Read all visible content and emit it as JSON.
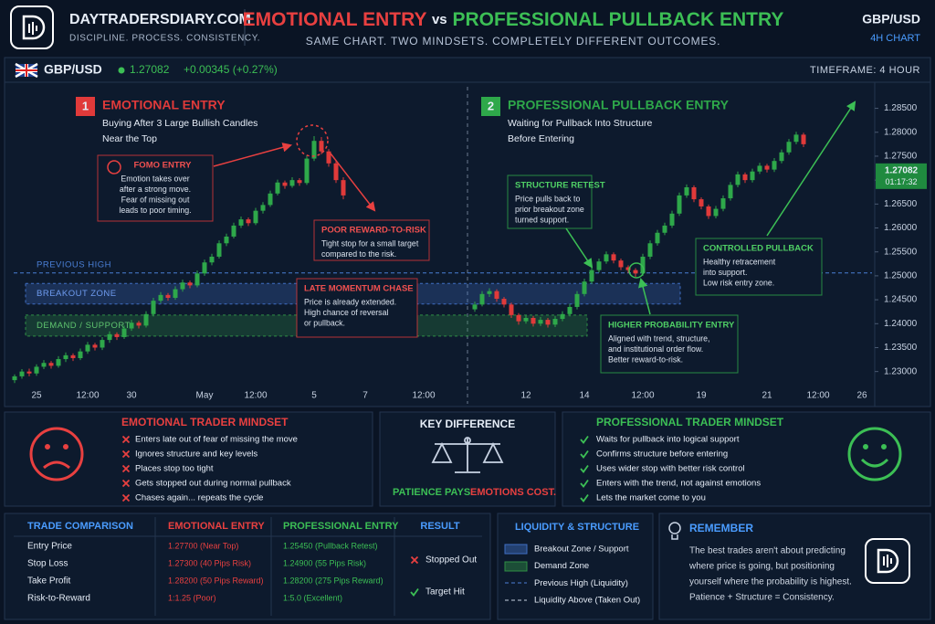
{
  "header": {
    "brand": "DAYTRADERSDIARY.COM",
    "tagline": "DISCIPLINE. PROCESS. CONSISTENCY.",
    "title_left": "EMOTIONAL ENTRY",
    "title_vs": "vs",
    "title_right": "PROFESSIONAL PULLBACK ENTRY",
    "subtitle": "SAME CHART. TWO MINDSETS. COMPLETELY DIFFERENT OUTCOMES.",
    "pair": "GBP/USD",
    "timeframe": "4H CHART"
  },
  "chart_data": {
    "type": "candlestick",
    "symbol": "GBP/USD",
    "price": 1.27082,
    "change": "+0.00345 (+0.27%)",
    "timeframe": "TIMEFRAME: 4 HOUR",
    "countdown": "01:17:32",
    "up_color": "#2ea84a",
    "down_color": "#e03a3a",
    "price_color": "#1f8a3f",
    "ylim": [
      1.2265,
      1.2895
    ],
    "yticks": [
      {
        "value": 1.23,
        "label": "1.23000"
      },
      {
        "value": 1.235,
        "label": "1.23500"
      },
      {
        "value": 1.24,
        "label": "1.24000"
      },
      {
        "value": 1.245,
        "label": "1.24500"
      },
      {
        "value": 1.25,
        "label": "1.25000"
      },
      {
        "value": 1.255,
        "label": "1.25500"
      },
      {
        "value": 1.26,
        "label": "1.26000"
      },
      {
        "value": 1.265,
        "label": "1.26500"
      },
      {
        "value": 1.27,
        "label": "1.27000"
      },
      {
        "value": 1.275,
        "label": "1.27500"
      },
      {
        "value": 1.28,
        "label": "1.28000"
      },
      {
        "value": 1.285,
        "label": "1.28500"
      }
    ],
    "categories": [
      null,
      null,
      null,
      "25",
      null,
      null,
      null,
      null,
      null,
      null,
      "12:00",
      null,
      null,
      null,
      null,
      null,
      "30",
      null,
      null,
      null,
      null,
      null,
      null,
      null,
      null,
      null,
      "May",
      null,
      null,
      null,
      null,
      null,
      null,
      "12:00",
      null,
      null,
      null,
      null,
      null,
      null,
      null,
      "5",
      null,
      null,
      null,
      null,
      null,
      null,
      "7",
      null,
      null,
      null,
      null,
      null,
      null,
      null,
      "12:00",
      null,
      null,
      null,
      null,
      null,
      null,
      null,
      null,
      null,
      null,
      null,
      null,
      null,
      "12",
      null,
      null,
      null,
      null,
      null,
      null,
      null,
      "14",
      null,
      null,
      null,
      null,
      null,
      null,
      null,
      "12:00",
      null,
      null,
      null,
      null,
      null,
      null,
      null,
      "19",
      null,
      null,
      null,
      null,
      null,
      null,
      null,
      null,
      "21",
      null,
      null,
      null,
      null,
      null,
      null,
      "12:00",
      null,
      null,
      null,
      null,
      null,
      "26"
    ],
    "candles": [
      [
        1.2282,
        1.2294,
        1.2276,
        1.229
      ],
      [
        1.229,
        1.2305,
        1.2285,
        1.23
      ],
      [
        1.23,
        1.2306,
        1.229,
        1.2296
      ],
      [
        1.2296,
        1.2315,
        1.2291,
        1.231
      ],
      [
        1.231,
        1.2324,
        1.2305,
        1.2318
      ],
      [
        1.2318,
        1.2322,
        1.2306,
        1.2312
      ],
      [
        1.2312,
        1.2332,
        1.2308,
        1.2326
      ],
      [
        1.2326,
        1.234,
        1.232,
        1.2334
      ],
      [
        1.2334,
        1.2338,
        1.2322,
        1.2328
      ],
      [
        1.2328,
        1.2348,
        1.2324,
        1.2342
      ],
      [
        1.2342,
        1.2362,
        1.2337,
        1.2356
      ],
      [
        1.2356,
        1.236,
        1.2344,
        1.235
      ],
      [
        1.235,
        1.2372,
        1.2345,
        1.2366
      ],
      [
        1.2366,
        1.2384,
        1.236,
        1.2378
      ],
      [
        1.2378,
        1.2382,
        1.2366,
        1.2372
      ],
      [
        1.2372,
        1.2396,
        1.2368,
        1.239
      ],
      [
        1.239,
        1.2408,
        1.2385,
        1.2402
      ],
      [
        1.2402,
        1.2406,
        1.239,
        1.2396
      ],
      [
        1.2396,
        1.2426,
        1.2392,
        1.242
      ],
      [
        1.242,
        1.2454,
        1.2415,
        1.2448
      ],
      [
        1.2448,
        1.2466,
        1.2443,
        1.246
      ],
      [
        1.246,
        1.2464,
        1.2448,
        1.2454
      ],
      [
        1.2454,
        1.2478,
        1.245,
        1.2472
      ],
      [
        1.2472,
        1.2492,
        1.2467,
        1.2486
      ],
      [
        1.2486,
        1.249,
        1.2474,
        1.248
      ],
      [
        1.248,
        1.2511,
        1.2476,
        1.2505
      ],
      [
        1.2505,
        1.2534,
        1.25,
        1.2528
      ],
      [
        1.2528,
        1.2546,
        1.2522,
        1.254
      ],
      [
        1.254,
        1.2574,
        1.2536,
        1.2568
      ],
      [
        1.2568,
        1.2588,
        1.2562,
        1.2582
      ],
      [
        1.2582,
        1.2611,
        1.2578,
        1.2605
      ],
      [
        1.2605,
        1.2624,
        1.26,
        1.2618
      ],
      [
        1.2618,
        1.2622,
        1.2604,
        1.261
      ],
      [
        1.261,
        1.2642,
        1.2606,
        1.2636
      ],
      [
        1.2636,
        1.2654,
        1.263,
        1.2648
      ],
      [
        1.2648,
        1.2678,
        1.2644,
        1.2672
      ],
      [
        1.2672,
        1.2701,
        1.2668,
        1.2695
      ],
      [
        1.2695,
        1.2699,
        1.2682,
        1.2688
      ],
      [
        1.2688,
        1.2706,
        1.2684,
        1.27
      ],
      [
        1.27,
        1.2704,
        1.2688,
        1.2694
      ],
      [
        1.2694,
        1.2752,
        1.269,
        1.2745
      ],
      [
        1.2745,
        1.2792,
        1.274,
        1.2782
      ],
      [
        1.2782,
        1.279,
        1.2754,
        1.276
      ],
      [
        1.276,
        1.2765,
        1.2728,
        1.2735
      ],
      [
        1.2735,
        1.274,
        1.2694,
        1.27
      ],
      [
        1.27,
        1.2706,
        1.266,
        1.2668
      ],
      null,
      null,
      null,
      null,
      null,
      null,
      null,
      null,
      null,
      null,
      null,
      null,
      null,
      null,
      null,
      null,
      null,
      [
        1.243,
        1.2446,
        1.2425,
        1.244
      ],
      [
        1.244,
        1.2468,
        1.2436,
        1.2462
      ],
      [
        1.2462,
        1.2474,
        1.2456,
        1.2468
      ],
      [
        1.2468,
        1.2472,
        1.2446,
        1.2452
      ],
      [
        1.2452,
        1.2456,
        1.2434,
        1.244
      ],
      [
        1.244,
        1.2444,
        1.2412,
        1.2418
      ],
      [
        1.2418,
        1.2422,
        1.2398,
        1.2405
      ],
      [
        1.2405,
        1.2418,
        1.24,
        1.2412
      ],
      [
        1.2412,
        1.2416,
        1.2394,
        1.24
      ],
      [
        1.24,
        1.2414,
        1.2395,
        1.2408
      ],
      [
        1.2408,
        1.2412,
        1.2392,
        1.2398
      ],
      [
        1.2398,
        1.2416,
        1.2393,
        1.241
      ],
      [
        1.241,
        1.2426,
        1.2405,
        1.242
      ],
      [
        1.242,
        1.2441,
        1.2415,
        1.2435
      ],
      [
        1.2435,
        1.2468,
        1.243,
        1.2462
      ],
      [
        1.2462,
        1.2494,
        1.2457,
        1.2488
      ],
      [
        1.2488,
        1.2518,
        1.2483,
        1.2512
      ],
      [
        1.2512,
        1.2536,
        1.2507,
        1.253
      ],
      [
        1.253,
        1.2551,
        1.2525,
        1.2545
      ],
      [
        1.2545,
        1.2549,
        1.2526,
        1.2532
      ],
      [
        1.2532,
        1.2536,
        1.2512,
        1.2518
      ],
      [
        1.2518,
        1.2522,
        1.2506,
        1.2512
      ],
      [
        1.2512,
        1.2516,
        1.2498,
        1.2505
      ],
      [
        1.2505,
        1.2546,
        1.25,
        1.254
      ],
      [
        1.254,
        1.2574,
        1.2535,
        1.2568
      ],
      [
        1.2568,
        1.2596,
        1.2563,
        1.259
      ],
      [
        1.259,
        1.2611,
        1.2585,
        1.2605
      ],
      [
        1.2605,
        1.2636,
        1.26,
        1.263
      ],
      [
        1.263,
        1.2674,
        1.2625,
        1.2668
      ],
      [
        1.2668,
        1.2691,
        1.2663,
        1.2685
      ],
      [
        1.2685,
        1.2689,
        1.2654,
        1.266
      ],
      [
        1.266,
        1.2664,
        1.2639,
        1.2645
      ],
      [
        1.2645,
        1.2649,
        1.2619,
        1.2625
      ],
      [
        1.2625,
        1.2646,
        1.262,
        1.264
      ],
      [
        1.264,
        1.2668,
        1.2635,
        1.2662
      ],
      [
        1.2662,
        1.2696,
        1.2657,
        1.269
      ],
      [
        1.269,
        1.2718,
        1.2685,
        1.2712
      ],
      [
        1.2712,
        1.2716,
        1.2694,
        1.27
      ],
      [
        1.27,
        1.2724,
        1.2695,
        1.2718
      ],
      [
        1.2718,
        1.2736,
        1.2713,
        1.273
      ],
      [
        1.273,
        1.2734,
        1.2716,
        1.2722
      ],
      [
        1.2722,
        1.2746,
        1.2717,
        1.274
      ],
      [
        1.274,
        1.2764,
        1.2735,
        1.2758
      ],
      [
        1.2758,
        1.2786,
        1.2753,
        1.278
      ],
      [
        1.278,
        1.2801,
        1.2775,
        1.2795
      ],
      [
        1.2795,
        1.2799,
        1.2769,
        1.2775
      ],
      null,
      null,
      null,
      null,
      null,
      null,
      null,
      null
    ],
    "levels": [
      {
        "label": "PREVIOUS HIGH",
        "value": 1.2506,
        "color": "#4a7fd6"
      }
    ],
    "zones": [
      {
        "label": "BREAKOUT ZONE",
        "low": 1.2441,
        "high": 1.2484,
        "color": "#3f6fc4"
      },
      {
        "label": "DEMAND / SUPPORT",
        "low": 1.2374,
        "high": 1.2418,
        "color": "#2f8f45"
      }
    ],
    "sections": [
      {
        "number": "1",
        "title": "EMOTIONAL ENTRY",
        "lines": [
          "Buying After 3 Large Bullish Candles",
          "Near the Top"
        ],
        "color": "#e03a3a"
      },
      {
        "number": "2",
        "title": "PROFESSIONAL PULLBACK ENTRY",
        "lines": [
          "Waiting for Pullback Into Structure",
          "Before Entering"
        ],
        "color": "#2ea84a"
      }
    ],
    "callouts": [
      {
        "title": "FOMO ENTRY",
        "lines": [
          "Emotion takes over",
          "after a strong move.",
          "Fear of missing out",
          "leads to poor timing."
        ],
        "color": "#e03a3a"
      },
      {
        "title": "POOR REWARD-TO-RISK",
        "lines": [
          "Tight stop for a small target",
          "compared to the risk."
        ],
        "color": "#e03a3a"
      },
      {
        "title": "LATE MOMENTUM CHASE",
        "lines": [
          "Price is already extended.",
          "High chance of reversal",
          "or pullback."
        ],
        "color": "#e03a3a"
      },
      {
        "title": "STRUCTURE RETEST",
        "lines": [
          "Price pulls back to",
          "prior breakout zone",
          "turned support."
        ],
        "color": "#2ea84a"
      },
      {
        "title": "CONTROLLED PULLBACK",
        "lines": [
          "Healthy retracement",
          "into support.",
          "Low risk entry zone."
        ],
        "color": "#2ea84a"
      },
      {
        "title": "HIGHER PROBABILITY ENTRY",
        "lines": [
          "Aligned with trend, structure,",
          "and institutional order flow.",
          "Better reward-to-risk."
        ],
        "color": "#2ea84a"
      }
    ]
  },
  "emotional_mindset": {
    "title": "EMOTIONAL TRADER MINDSET",
    "items": [
      "Enters late out of fear of missing the move",
      "Ignores structure and key levels",
      "Places stop too tight",
      "Gets stopped out during normal pullback",
      "Chases again... repeats the cycle"
    ]
  },
  "key_difference": {
    "title": "KEY DIFFERENCE",
    "left": "PATIENCE PAYS.",
    "right": "EMOTIONS COST."
  },
  "professional_mindset": {
    "title": "PROFESSIONAL TRADER MINDSET",
    "items": [
      "Waits for pullback into logical support",
      "Confirms structure before entering",
      "Uses wider stop with better risk control",
      "Enters with the trend, not against emotions",
      "Lets the market come to you"
    ]
  },
  "comparison": {
    "headers": [
      "TRADE COMPARISON",
      "EMOTIONAL ENTRY",
      "PROFESSIONAL ENTRY",
      "RESULT"
    ],
    "rows": [
      [
        "Entry Price",
        "1.27700 (Near Top)",
        "1.25450 (Pullback Retest)"
      ],
      [
        "Stop Loss",
        "1.27300 (40 Pips Risk)",
        "1.24900 (55 Pips Risk)"
      ],
      [
        "Take Profit",
        "1.28200 (50 Pips Reward)",
        "1.28200 (275 Pips Reward)"
      ],
      [
        "Risk-to-Reward",
        "1:1.25 (Poor)",
        "1:5.0 (Excellent)"
      ]
    ],
    "results": [
      "Stopped Out",
      "Target Hit"
    ]
  },
  "liquidity": {
    "title": "LIQUIDITY & STRUCTURE",
    "items": [
      "Breakout Zone / Support",
      "Demand Zone",
      "Previous High (Liquidity)",
      "Liquidity Above (Taken Out)"
    ]
  },
  "remember": {
    "title": "REMEMBER",
    "lines": [
      "The best trades aren't about predicting",
      "where price is going, but positioning",
      "yourself where the probability is highest.",
      "Patience + Structure = Consistency."
    ]
  }
}
